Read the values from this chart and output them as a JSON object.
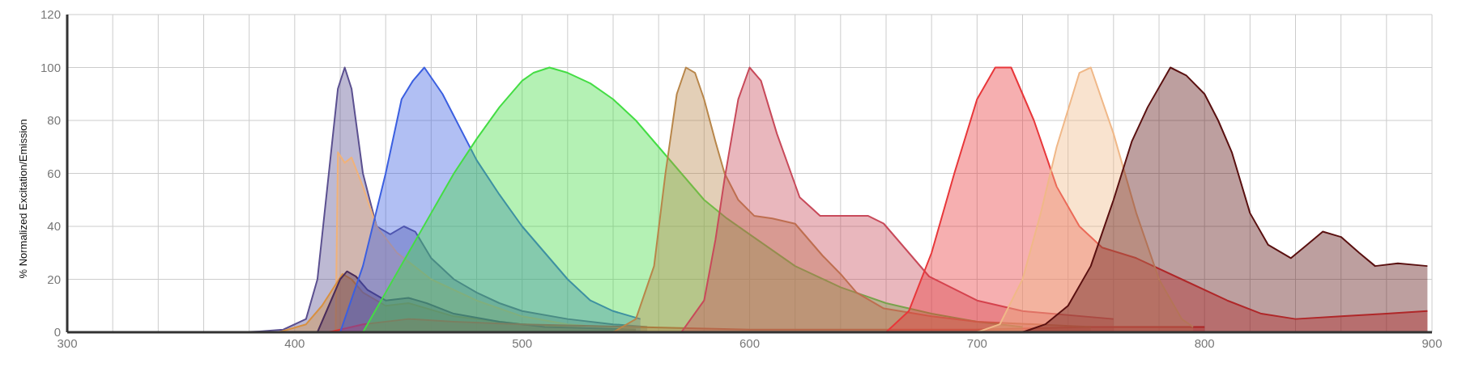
{
  "chart_data": {
    "type": "area",
    "ylabel": "% Normalized Excitation/Emission",
    "xlim": [
      300,
      900
    ],
    "ylim": [
      0,
      120
    ],
    "xticks": [
      300,
      {
        "value": 320,
        "label": null
      },
      {
        "value": 340,
        "label": null
      },
      {
        "value": 360,
        "label": null
      },
      {
        "value": 380,
        "label": null
      },
      400,
      {
        "value": 420,
        "label": null
      },
      {
        "value": 440,
        "label": null
      },
      {
        "value": 460,
        "label": null
      },
      {
        "value": 480,
        "label": null
      },
      500,
      {
        "value": 520,
        "label": null
      },
      {
        "value": 540,
        "label": null
      },
      {
        "value": 560,
        "label": null
      },
      {
        "value": 580,
        "label": null
      },
      600,
      {
        "value": 620,
        "label": null
      },
      {
        "value": 640,
        "label": null
      },
      {
        "value": 660,
        "label": null
      },
      {
        "value": 680,
        "label": null
      },
      700,
      {
        "value": 720,
        "label": null
      },
      {
        "value": 740,
        "label": null
      },
      {
        "value": 760,
        "label": null
      },
      {
        "value": 780,
        "label": null
      },
      800,
      {
        "value": 820,
        "label": null
      },
      {
        "value": 840,
        "label": null
      },
      {
        "value": 860,
        "label": null
      },
      {
        "value": 880,
        "label": null
      },
      900
    ],
    "yticks": [
      0,
      20,
      40,
      60,
      80,
      100,
      120
    ],
    "grid": true,
    "marker": "none",
    "series": [
      {
        "color": "#5b5090",
        "x": [
          380,
          395,
          405,
          410,
          415,
          419,
          422,
          425,
          430,
          436,
          442,
          448,
          453,
          460,
          470,
          480,
          490,
          500,
          520,
          540,
          555
        ],
        "values": [
          0,
          1,
          5,
          20,
          60,
          92,
          100,
          92,
          60,
          40,
          37,
          40,
          38,
          28,
          20,
          15,
          11,
          8,
          5,
          3,
          2
        ]
      },
      {
        "color": "#f0b27a",
        "x": [
          418,
          419,
          422,
          425,
          430,
          436,
          445,
          460,
          480,
          500,
          520,
          550
        ],
        "values": [
          0,
          68,
          64,
          66,
          55,
          40,
          30,
          20,
          12,
          6,
          3,
          1
        ]
      },
      {
        "color": "#d89040",
        "x": [
          393,
          405,
          412,
          418,
          421,
          425,
          430,
          440,
          450,
          470,
          500,
          540
        ],
        "values": [
          0,
          3,
          10,
          18,
          22,
          20,
          15,
          10,
          11,
          6,
          3,
          1
        ]
      },
      {
        "color": "#4a2c5a",
        "x": [
          410,
          415,
          420,
          423,
          427,
          432,
          440,
          450,
          458,
          470,
          490,
          510,
          550
        ],
        "values": [
          0,
          10,
          20,
          23,
          21,
          16,
          12,
          13,
          11,
          7,
          4,
          2,
          1
        ]
      },
      {
        "color": "#e03030",
        "x": [
          415,
          430,
          450,
          470,
          500,
          550,
          600,
          650,
          700,
          750,
          800
        ],
        "values": [
          0,
          3,
          5,
          4,
          3,
          2,
          1,
          1,
          1,
          2,
          2
        ]
      },
      {
        "color": "#3b5fe0",
        "x": [
          420,
          430,
          440,
          447,
          452,
          457,
          465,
          480,
          490,
          500,
          510,
          520,
          530,
          540,
          552
        ],
        "values": [
          0,
          25,
          60,
          88,
          95,
          100,
          90,
          65,
          52,
          40,
          30,
          20,
          12,
          8,
          5
        ]
      },
      {
        "color": "#44dd44",
        "x": [
          430,
          440,
          450,
          460,
          470,
          480,
          490,
          500,
          505,
          512,
          520,
          530,
          540,
          550,
          560,
          570,
          580,
          590,
          600,
          620,
          640,
          660,
          680,
          700,
          720
        ],
        "values": [
          0,
          15,
          30,
          45,
          60,
          73,
          85,
          95,
          98,
          100,
          98,
          94,
          88,
          80,
          70,
          60,
          50,
          43,
          37,
          25,
          17,
          11,
          7,
          4,
          2
        ]
      },
      {
        "color": "#b8864a",
        "x": [
          540,
          550,
          558,
          563,
          568,
          572,
          576,
          580,
          585,
          589,
          595,
          602,
          610,
          620,
          632,
          640,
          647,
          659,
          680,
          700,
          750
        ],
        "values": [
          0,
          5,
          25,
          60,
          90,
          100,
          98,
          88,
          72,
          60,
          50,
          44,
          43,
          41,
          29,
          22,
          15,
          9,
          6,
          4,
          2
        ]
      },
      {
        "color": "#c84a5a",
        "x": [
          570,
          580,
          585,
          589,
          595,
          600,
          605,
          612,
          622,
          631,
          640,
          652,
          659,
          671,
          679,
          700,
          720,
          760
        ],
        "values": [
          0,
          12,
          35,
          58,
          88,
          100,
          95,
          75,
          51,
          44,
          44,
          44,
          41,
          29,
          21,
          12,
          8,
          5
        ]
      },
      {
        "color": "#e8373a",
        "x": [
          660,
          670,
          680,
          690,
          700,
          708,
          715,
          725,
          735,
          745,
          755,
          770,
          790,
          810,
          825,
          840,
          860,
          880,
          898
        ],
        "values": [
          0,
          8,
          30,
          60,
          88,
          100,
          100,
          80,
          55,
          40,
          32,
          28,
          20,
          12,
          7,
          5,
          6,
          7,
          8
        ]
      },
      {
        "color": "#f0b888",
        "x": [
          700,
          710,
          720,
          728,
          735,
          745,
          750,
          760,
          770,
          780,
          790,
          795
        ],
        "values": [
          0,
          3,
          20,
          45,
          70,
          98,
          100,
          75,
          45,
          20,
          5,
          2
        ]
      },
      {
        "color": "#5a1010",
        "x": [
          720,
          730,
          740,
          750,
          760,
          768,
          775,
          785,
          792,
          800,
          806,
          812,
          820,
          828,
          838,
          845,
          852,
          860,
          868,
          875,
          885,
          898
        ],
        "values": [
          0,
          3,
          10,
          25,
          50,
          72,
          85,
          100,
          97,
          90,
          80,
          68,
          45,
          33,
          28,
          33,
          38,
          36,
          30,
          25,
          26,
          25
        ]
      }
    ]
  }
}
